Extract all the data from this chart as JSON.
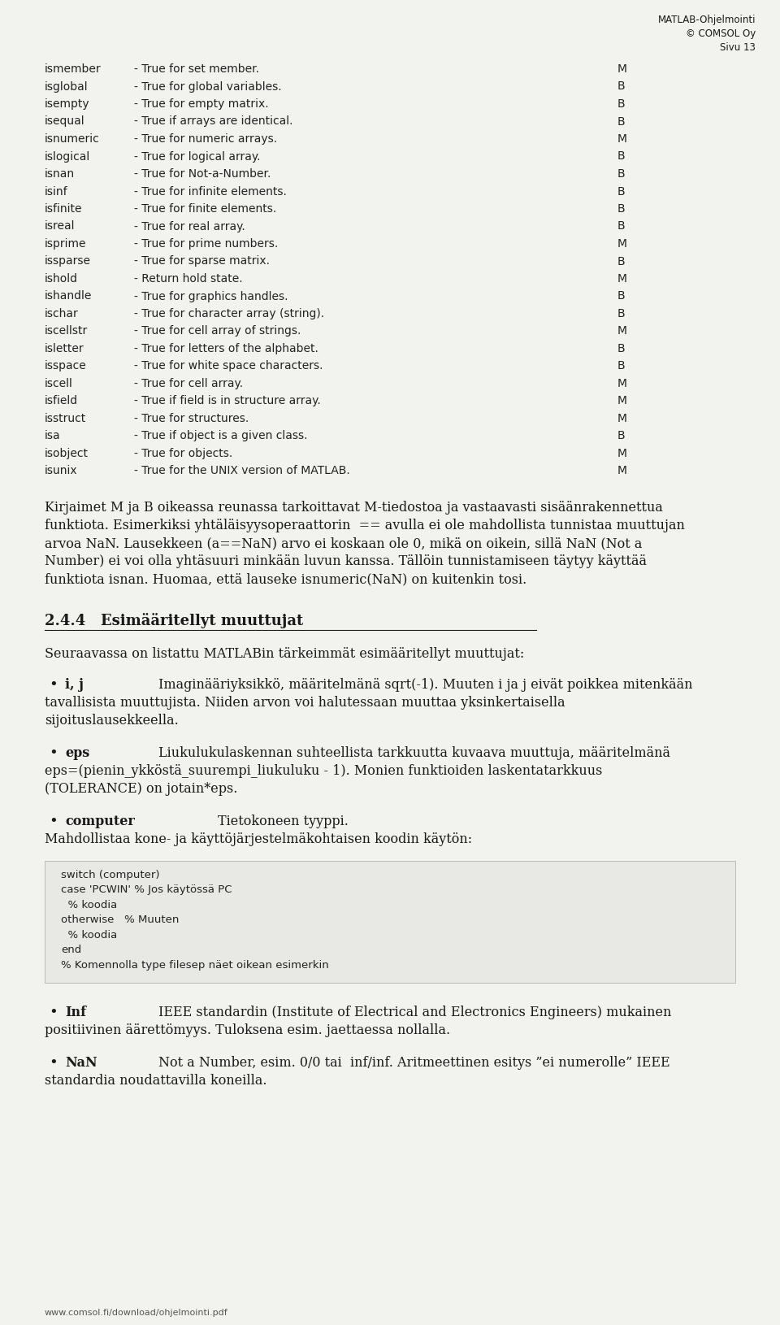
{
  "bg_color": "#f2f2ee",
  "header_lines": [
    "MATLAB-Ohjelmointi",
    "© COMSOL Oy",
    "Sivu 13"
  ],
  "monospace_rows": [
    [
      "ismember",
      "- True for set member.",
      "M"
    ],
    [
      "isglobal",
      "- True for global variables.",
      "B"
    ],
    [
      "isempty",
      "- True for empty matrix.",
      "B"
    ],
    [
      "isequal",
      "- True if arrays are identical.",
      "B"
    ],
    [
      "isnumeric",
      "- True for numeric arrays.",
      "M"
    ],
    [
      "islogical",
      "- True for logical array.",
      "B"
    ],
    [
      "isnan",
      "- True for Not-a-Number.",
      "B"
    ],
    [
      "isinf",
      "- True for infinite elements.",
      "B"
    ],
    [
      "isfinite",
      "- True for finite elements.",
      "B"
    ],
    [
      "isreal",
      "- True for real array.",
      "B"
    ],
    [
      "isprime",
      "- True for prime numbers.",
      "M"
    ],
    [
      "issparse",
      "- True for sparse matrix.",
      "B"
    ],
    [
      "ishold",
      "- Return hold state.",
      "M"
    ],
    [
      "ishandle",
      "- True for graphics handles.",
      "B"
    ],
    [
      "ischar",
      "- True for character array (string).",
      "B"
    ],
    [
      "iscellstr",
      "- True for cell array of strings.",
      "M"
    ],
    [
      "isletter",
      "- True for letters of the alphabet.",
      "B"
    ],
    [
      "isspace",
      "- True for white space characters.",
      "B"
    ],
    [
      "iscell",
      "- True for cell array.",
      "M"
    ],
    [
      "isfield",
      "- True if field is in structure array.",
      "M"
    ],
    [
      "isstruct",
      "- True for structures.",
      "M"
    ],
    [
      "isa",
      "- True if object is a given class.",
      "B"
    ],
    [
      "isobject",
      "- True for objects.",
      "M"
    ],
    [
      "isunix",
      "- True for the UNIX version of MATLAB.",
      "M"
    ]
  ],
  "para_lines": [
    "Kirjaimet M ja B oikeassa reunassa tarkoittavat M-tiedostoa ja vastaavasti sisäänrakennettua",
    "funktiota. Esimerkiksi yhtäläisyysoperaattorin  == avulla ei ole mahdollista tunnistaa muuttujan",
    "arvoa NaN. Lausekkeen (a==NaN) arvo ei koskaan ole 0, mikä on oikein, sillä NaN (Not a",
    "Number) ei voi olla yhtäsuuri minkään luvun kanssa. Tällöin tunnistamiseen täytyy käyttää",
    "funktiota isnan. Huomaa, että lauseke isnumeric(NaN) on kuitenkin tosi."
  ],
  "section_heading": "2.4.4   Esimääritellyt muuttujat",
  "section_intro": "Seuraavassa on listattu MATLABin tärkeimmät esimääritellyt muuttujat:",
  "ij_line1": "Imaginääriyksikkö, määritelmänä sqrt(-1). Muuten i ja j eivät poikkea mitenkään",
  "ij_line2": "tavallisista muuttujista. Niiden arvon voi halutessaan muuttaa yksinkertaisella",
  "ij_line3": "sijoituslausekkeella.",
  "eps_line1": "Liukulukulaskennan suhteellista tarkkuutta kuvaava muuttuja, määritelmänä",
  "eps_line2": "eps=(pienin_ykköstä_suurempi_liukuluku - 1). Monien funktioiden laskentatarkkuus",
  "eps_line3": "(TOLERANCE) on jotain*eps.",
  "comp_line1": "Tietokoneen tyyppi.",
  "comp_line2": "Mahdollistaa kone- ja käyttöjärjestelmäkohtaisen koodin käytön:",
  "code_block": [
    "switch (computer)",
    "case 'PCWIN' % Jos käytössä PC",
    "  % koodia",
    "otherwise   % Muuten",
    "  % koodia",
    "end",
    "% Komennolla type filesep näet oikean esimerkin"
  ],
  "inf_line1": "IEEE standardin (Institute of Electrical and Electronics Engineers) mukainen",
  "inf_line2": "positiivinen äärettömyys. Tuloksena esim. jaettaessa nollalla.",
  "nan_line1": "Not a Number, esim. 0/0 tai  inf/inf. Aritmeettinen esitys ”ei numerolle” IEEE",
  "nan_line2": "standardia noudattavilla koneilla.",
  "footer": "www.comsol.fi/download/ohjelmointi.pdf",
  "text_color": "#1a1a1a",
  "mono_color": "#222222",
  "code_color": "#222222",
  "header_color": "#1a1a1a",
  "code_bg": "#e8e8e4",
  "code_border": "#bbbbbb"
}
